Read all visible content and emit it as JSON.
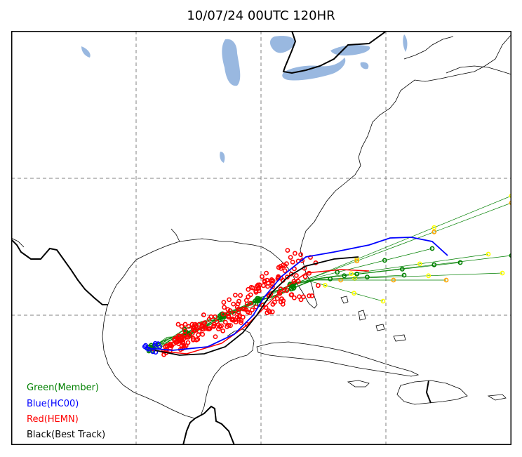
{
  "title": "10/07/24 00UTC 120HR",
  "legend": {
    "green": "Green(Member)",
    "blue": "Blue(HC00)",
    "red": "Red(HEMN)",
    "black": "Black(Best Track)"
  },
  "colors": {
    "member": "#008000",
    "hc00": "#0000ff",
    "hemn": "#ff0000",
    "best_track": "#000000",
    "water": "#99b8e0",
    "grid": "#808080",
    "member_yellow": "#ffff00",
    "member_orange": "#ffa500"
  }
}
